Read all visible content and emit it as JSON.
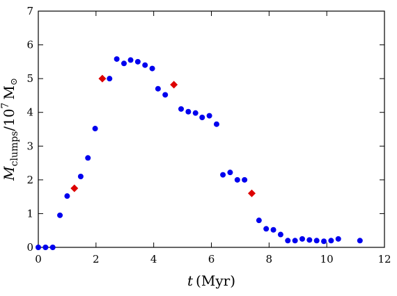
{
  "chart_data": {
    "type": "scatter",
    "xlim": [
      0,
      12
    ],
    "ylim": [
      0,
      7
    ],
    "x_ticks": [
      0,
      2,
      4,
      6,
      8,
      10,
      12
    ],
    "y_ticks": [
      0,
      1,
      2,
      3,
      4,
      5,
      6,
      7
    ],
    "x_tick_labels": [
      "0",
      "2",
      "4",
      "6",
      "8",
      "10",
      "12"
    ],
    "y_tick_labels": [
      "0",
      "1",
      "2",
      "3",
      "4",
      "5",
      "6",
      "7"
    ],
    "xlabel": {
      "var": "t",
      "unit": "(Myr)"
    },
    "ylabel": {
      "var": "M",
      "sub": "clumps",
      "mid": "/10",
      "sup": "7",
      "unit": "M",
      "unit_sub": "⊙"
    },
    "grid": false,
    "series": [
      {
        "marker": "circle",
        "color": "#0000ee",
        "points": [
          [
            0.0,
            0.0
          ],
          [
            0.25,
            0.0
          ],
          [
            0.5,
            0.0
          ],
          [
            0.75,
            0.95
          ],
          [
            1.0,
            1.52
          ],
          [
            1.47,
            2.1
          ],
          [
            1.72,
            2.65
          ],
          [
            1.97,
            3.52
          ],
          [
            2.47,
            5.0
          ],
          [
            2.72,
            5.58
          ],
          [
            2.97,
            5.45
          ],
          [
            3.2,
            5.55
          ],
          [
            3.45,
            5.5
          ],
          [
            3.7,
            5.4
          ],
          [
            3.95,
            5.3
          ],
          [
            4.15,
            4.7
          ],
          [
            4.4,
            4.52
          ],
          [
            4.95,
            4.1
          ],
          [
            5.2,
            4.02
          ],
          [
            5.45,
            3.98
          ],
          [
            5.68,
            3.85
          ],
          [
            5.93,
            3.9
          ],
          [
            6.18,
            3.65
          ],
          [
            6.4,
            2.15
          ],
          [
            6.65,
            2.22
          ],
          [
            6.9,
            2.0
          ],
          [
            7.15,
            2.0
          ],
          [
            7.65,
            0.8
          ],
          [
            7.9,
            0.55
          ],
          [
            8.15,
            0.52
          ],
          [
            8.4,
            0.38
          ],
          [
            8.65,
            0.2
          ],
          [
            8.9,
            0.2
          ],
          [
            9.15,
            0.25
          ],
          [
            9.4,
            0.22
          ],
          [
            9.65,
            0.2
          ],
          [
            9.9,
            0.18
          ],
          [
            10.15,
            0.2
          ],
          [
            10.4,
            0.25
          ],
          [
            11.15,
            0.2
          ]
        ]
      },
      {
        "marker": "diamond",
        "color": "#dd0000",
        "points": [
          [
            1.25,
            1.75
          ],
          [
            2.22,
            5.0
          ],
          [
            4.7,
            4.82
          ],
          [
            7.4,
            1.6
          ]
        ]
      }
    ]
  }
}
